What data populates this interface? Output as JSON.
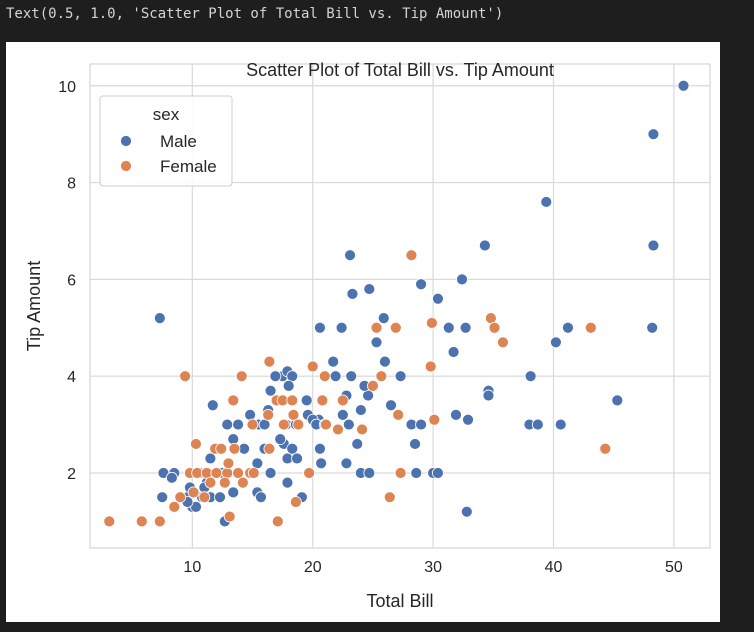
{
  "output_text": "Text(0.5, 1.0, 'Scatter Plot of Total Bill vs. Tip Amount')",
  "chart_data": {
    "type": "scatter",
    "title": "Scatter Plot of Total Bill vs. Tip Amount",
    "xlabel": "Total Bill",
    "ylabel": "Tip Amount",
    "xlim": [
      1.5,
      53.0
    ],
    "ylim": [
      0.45,
      10.45
    ],
    "xticks": [
      10,
      20,
      30,
      40,
      50
    ],
    "yticks": [
      2,
      4,
      6,
      8,
      10
    ],
    "grid": true,
    "legend": {
      "title": "sex",
      "placement": "top-left"
    },
    "series": [
      {
        "name": "Male",
        "color": "#4c72b0",
        "points": [
          [
            50.8,
            10.0
          ],
          [
            48.3,
            9.0
          ],
          [
            48.3,
            6.7
          ],
          [
            48.2,
            5.0
          ],
          [
            39.4,
            7.6
          ],
          [
            34.3,
            6.7
          ],
          [
            32.4,
            6.0
          ],
          [
            23.1,
            6.5
          ],
          [
            29.0,
            5.9
          ],
          [
            24.7,
            5.8
          ],
          [
            23.3,
            5.7
          ],
          [
            7.3,
            5.2
          ],
          [
            25.9,
            5.2
          ],
          [
            30.4,
            5.6
          ],
          [
            29.9,
            5.1
          ],
          [
            20.6,
            5.0
          ],
          [
            22.4,
            5.0
          ],
          [
            25.3,
            5.0
          ],
          [
            31.3,
            5.0
          ],
          [
            32.7,
            5.0
          ],
          [
            41.2,
            5.0
          ],
          [
            40.2,
            4.7
          ],
          [
            25.3,
            4.7
          ],
          [
            31.7,
            4.5
          ],
          [
            21.7,
            4.3
          ],
          [
            26.0,
            4.3
          ],
          [
            17.5,
            4.0
          ],
          [
            17.9,
            4.1
          ],
          [
            18.3,
            4.0
          ],
          [
            16.9,
            4.0
          ],
          [
            21.9,
            4.0
          ],
          [
            23.2,
            4.0
          ],
          [
            27.3,
            4.0
          ],
          [
            38.1,
            4.0
          ],
          [
            16.5,
            3.7
          ],
          [
            18.0,
            3.8
          ],
          [
            22.8,
            3.6
          ],
          [
            24.6,
            3.6
          ],
          [
            24.3,
            3.8
          ],
          [
            34.6,
            3.7
          ],
          [
            34.6,
            3.6
          ],
          [
            45.3,
            3.5
          ],
          [
            11.7,
            3.4
          ],
          [
            19.5,
            3.5
          ],
          [
            20.5,
            3.1
          ],
          [
            22.5,
            3.2
          ],
          [
            23.0,
            3.0
          ],
          [
            24.0,
            3.3
          ],
          [
            26.5,
            3.4
          ],
          [
            28.2,
            3.0
          ],
          [
            29.0,
            3.0
          ],
          [
            31.9,
            3.2
          ],
          [
            32.9,
            3.1
          ],
          [
            38.0,
            3.0
          ],
          [
            38.7,
            3.0
          ],
          [
            40.6,
            3.0
          ],
          [
            12.9,
            3.0
          ],
          [
            13.8,
            3.0
          ],
          [
            14.8,
            3.2
          ],
          [
            15.5,
            3.0
          ],
          [
            16.0,
            3.0
          ],
          [
            16.3,
            3.3
          ],
          [
            17.6,
            2.6
          ],
          [
            17.8,
            3.0
          ],
          [
            18.6,
            3.0
          ],
          [
            19.6,
            3.2
          ],
          [
            20.0,
            3.1
          ],
          [
            20.3,
            3.0
          ],
          [
            20.6,
            2.5
          ],
          [
            21.0,
            3.0
          ],
          [
            10.6,
            2.0
          ],
          [
            11.2,
            1.8
          ],
          [
            11.5,
            2.3
          ],
          [
            12.2,
            2.5
          ],
          [
            12.5,
            2.0
          ],
          [
            13.0,
            2.0
          ],
          [
            13.4,
            2.7
          ],
          [
            13.8,
            2.0
          ],
          [
            14.3,
            2.5
          ],
          [
            14.8,
            2.0
          ],
          [
            15.4,
            2.2
          ],
          [
            16.0,
            2.5
          ],
          [
            16.5,
            2.0
          ],
          [
            17.3,
            2.7
          ],
          [
            17.9,
            2.3
          ],
          [
            18.3,
            2.5
          ],
          [
            18.7,
            2.3
          ],
          [
            19.7,
            2.0
          ],
          [
            20.7,
            2.2
          ],
          [
            22.8,
            2.2
          ],
          [
            23.7,
            2.6
          ],
          [
            24.0,
            2.0
          ],
          [
            24.7,
            2.0
          ],
          [
            28.5,
            2.6
          ],
          [
            28.6,
            2.0
          ],
          [
            30.0,
            2.0
          ],
          [
            30.4,
            2.0
          ],
          [
            7.6,
            2.0
          ],
          [
            8.5,
            2.0
          ],
          [
            9.6,
            1.5
          ],
          [
            9.8,
            1.7
          ],
          [
            10.0,
            1.3
          ],
          [
            10.3,
            1.3
          ],
          [
            10.8,
            1.5
          ],
          [
            11.5,
            1.5
          ],
          [
            12.3,
            1.5
          ],
          [
            12.7,
            1.0
          ],
          [
            13.4,
            1.6
          ],
          [
            15.4,
            1.6
          ],
          [
            15.7,
            1.5
          ],
          [
            17.9,
            1.8
          ],
          [
            19.1,
            1.5
          ],
          [
            7.5,
            1.5
          ],
          [
            8.3,
            1.9
          ],
          [
            32.8,
            1.2
          ],
          [
            9.6,
            1.4
          ],
          [
            11.0,
            1.7
          ]
        ]
      },
      {
        "name": "Female",
        "color": "#dd8452",
        "points": [
          [
            28.2,
            6.5
          ],
          [
            34.8,
            5.2
          ],
          [
            35.1,
            5.0
          ],
          [
            29.9,
            5.1
          ],
          [
            43.1,
            5.0
          ],
          [
            26.9,
            5.0
          ],
          [
            25.3,
            5.0
          ],
          [
            35.8,
            4.7
          ],
          [
            16.4,
            4.3
          ],
          [
            20.0,
            4.2
          ],
          [
            14.1,
            4.0
          ],
          [
            9.4,
            4.0
          ],
          [
            25.7,
            4.0
          ],
          [
            29.8,
            4.2
          ],
          [
            21.0,
            4.0
          ],
          [
            25.0,
            3.8
          ],
          [
            13.4,
            3.5
          ],
          [
            17.0,
            3.5
          ],
          [
            17.5,
            3.5
          ],
          [
            18.3,
            3.5
          ],
          [
            20.8,
            3.5
          ],
          [
            22.5,
            3.5
          ],
          [
            16.3,
            3.2
          ],
          [
            18.4,
            3.2
          ],
          [
            27.1,
            3.2
          ],
          [
            30.1,
            3.1
          ],
          [
            15.0,
            3.0
          ],
          [
            17.6,
            3.0
          ],
          [
            18.8,
            3.0
          ],
          [
            21.1,
            3.0
          ],
          [
            22.1,
            2.9
          ],
          [
            24.1,
            2.9
          ],
          [
            44.3,
            2.5
          ],
          [
            10.3,
            2.6
          ],
          [
            11.9,
            2.5
          ],
          [
            13.5,
            2.5
          ],
          [
            14.8,
            2.0
          ],
          [
            16.4,
            2.5
          ],
          [
            19.7,
            2.0
          ],
          [
            9.8,
            2.0
          ],
          [
            10.4,
            2.0
          ],
          [
            11.2,
            2.0
          ],
          [
            12.0,
            2.0
          ],
          [
            12.9,
            2.0
          ],
          [
            13.8,
            2.0
          ],
          [
            15.1,
            2.0
          ],
          [
            27.3,
            2.0
          ],
          [
            11.5,
            1.8
          ],
          [
            10.1,
            1.6
          ],
          [
            12.7,
            1.8
          ],
          [
            14.2,
            1.8
          ],
          [
            8.5,
            1.3
          ],
          [
            11.0,
            1.5
          ],
          [
            13.1,
            1.1
          ],
          [
            3.1,
            1.0
          ],
          [
            5.8,
            1.0
          ],
          [
            7.3,
            1.0
          ],
          [
            17.1,
            1.0
          ],
          [
            26.4,
            1.5
          ],
          [
            18.6,
            1.4
          ],
          [
            12.4,
            2.5
          ],
          [
            13.0,
            2.2
          ],
          [
            9.0,
            1.5
          ]
        ]
      }
    ]
  }
}
